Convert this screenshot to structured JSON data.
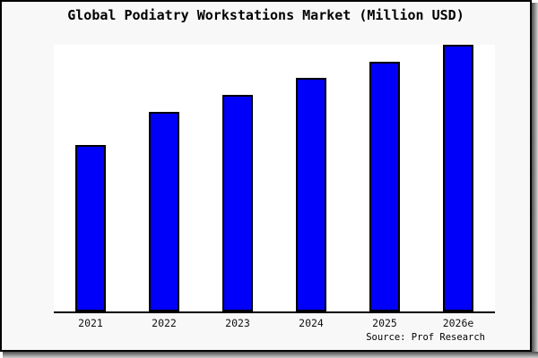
{
  "window": {
    "page_background": "#f8f8f8",
    "border_color": "#000000",
    "shadow_dark": "#4d4d4d",
    "shadow_light": "#cfcfcf"
  },
  "chart": {
    "title": "Global Podiatry Workstations Market (Million USD)",
    "source": "Source: Prof Research",
    "bar_fill": "#0000fa",
    "bar_border": "#000000",
    "plot_background": "#ffffff"
  },
  "chart_data": {
    "type": "bar",
    "title": "Global Podiatry Workstations Market (Million USD)",
    "categories": [
      "2021",
      "2022",
      "2023",
      "2024",
      "2025",
      "2026e"
    ],
    "values": [
      62.4,
      74.8,
      81.2,
      87.6,
      93.6,
      100
    ],
    "units": "relative index (no y-axis labels shown in chart; tallest bar 2026e = 100)",
    "xlabel": "",
    "ylabel": "",
    "ylim": [
      0,
      100
    ],
    "grid": false,
    "legend": null,
    "annotations": [
      "Source: Prof Research"
    ]
  }
}
